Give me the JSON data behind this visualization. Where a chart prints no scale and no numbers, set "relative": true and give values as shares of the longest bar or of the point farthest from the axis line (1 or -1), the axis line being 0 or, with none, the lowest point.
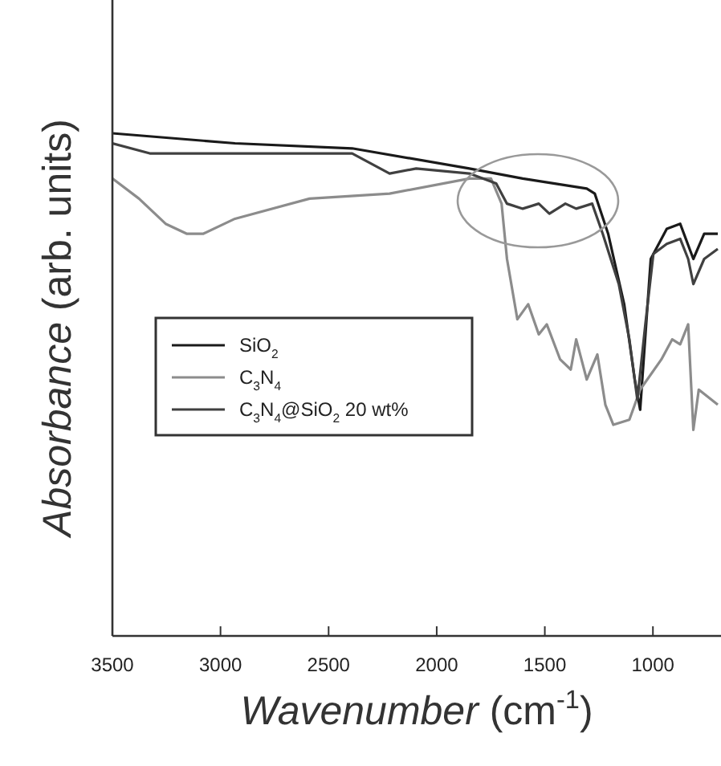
{
  "chart_data": {
    "type": "line",
    "xlabel": "Wavenumber (cm$^{-1}$)",
    "ylabel": "Absorbance (arb. units)",
    "relative": true,
    "xlim": [
      3500,
      700
    ],
    "xticks": [
      3500,
      3000,
      2500,
      2000,
      1500,
      1000
    ],
    "legend": "left",
    "grid": false,
    "marker": "none",
    "line_style": "solid",
    "series": [
      {
        "name": "SiO$_{2}$",
        "color": "#1a1a1a",
        "x": [
          3500,
          2933,
          2391,
          1849,
          1602,
          1454,
          1306,
          1269,
          1207,
          1133,
          1084,
          1059,
          1010,
          936,
          874,
          813,
          763,
          700
        ],
        "values": [
          1.0,
          0.98,
          0.97,
          0.93,
          0.91,
          0.9,
          0.89,
          0.88,
          0.8,
          0.66,
          0.51,
          0.45,
          0.75,
          0.81,
          0.82,
          0.75,
          0.8,
          0.8
        ]
      },
      {
        "name": "C$_{3}$N$_{4}$",
        "color": "#8c8c8c",
        "x": [
          3500,
          3377,
          3254,
          3155,
          3081,
          2933,
          2588,
          2218,
          1849,
          1749,
          1700,
          1675,
          1627,
          1577,
          1528,
          1491,
          1429,
          1380,
          1355,
          1306,
          1257,
          1220,
          1183,
          1109,
          1059,
          961,
          911,
          874,
          837,
          813,
          788,
          700
        ],
        "values": [
          0.91,
          0.87,
          0.82,
          0.8,
          0.8,
          0.83,
          0.87,
          0.88,
          0.91,
          0.91,
          0.86,
          0.75,
          0.63,
          0.66,
          0.6,
          0.62,
          0.55,
          0.53,
          0.59,
          0.51,
          0.56,
          0.46,
          0.42,
          0.43,
          0.49,
          0.55,
          0.59,
          0.58,
          0.62,
          0.41,
          0.49,
          0.46
        ]
      },
      {
        "name": "C$_{3}$N$_{4}$@SiO$_{2}$ 20 wt%",
        "color": "#404040",
        "x": [
          3500,
          3327,
          2933,
          2391,
          2218,
          2095,
          1849,
          1725,
          1675,
          1602,
          1528,
          1479,
          1405,
          1355,
          1281,
          1232,
          1158,
          1109,
          1072,
          1035,
          998,
          936,
          874,
          837,
          813,
          763,
          700
        ],
        "values": [
          0.98,
          0.96,
          0.96,
          0.96,
          0.92,
          0.93,
          0.92,
          0.9,
          0.86,
          0.85,
          0.86,
          0.84,
          0.86,
          0.85,
          0.86,
          0.8,
          0.7,
          0.59,
          0.47,
          0.62,
          0.76,
          0.78,
          0.79,
          0.75,
          0.7,
          0.75,
          0.77
        ]
      }
    ]
  }
}
